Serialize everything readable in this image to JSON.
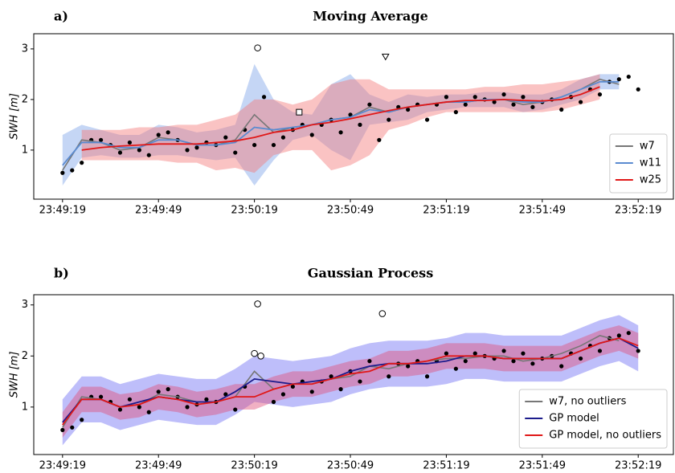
{
  "chart_data": [
    {
      "type": "line",
      "label": "a)",
      "title": "Moving Average",
      "ylabel": "SWH [m]",
      "xlim": [
        "23:49:10",
        "23:52:30"
      ],
      "xticks": [
        "23:49:19",
        "23:49:49",
        "23:50:19",
        "23:50:49",
        "23:51:19",
        "23:51:49",
        "23:52:19"
      ],
      "ylim": [
        0.03,
        3.3
      ],
      "yticks": [
        1,
        2,
        3
      ],
      "legend": "lower right",
      "points": {
        "color": "#000000",
        "x": [
          "23:49:19",
          "23:49:22",
          "23:49:25",
          "23:49:28",
          "23:49:31",
          "23:49:34",
          "23:49:37",
          "23:49:40",
          "23:49:43",
          "23:49:46",
          "23:49:49",
          "23:49:52",
          "23:49:55",
          "23:49:58",
          "23:50:01",
          "23:50:04",
          "23:50:07",
          "23:50:10",
          "23:50:13",
          "23:50:16",
          "23:50:19",
          "23:50:22",
          "23:50:25",
          "23:50:28",
          "23:50:31",
          "23:50:34",
          "23:50:37",
          "23:50:40",
          "23:50:43",
          "23:50:46",
          "23:50:49",
          "23:50:52",
          "23:50:55",
          "23:50:58",
          "23:51:01",
          "23:51:04",
          "23:51:07",
          "23:51:10",
          "23:51:13",
          "23:51:16",
          "23:51:19",
          "23:51:22",
          "23:51:25",
          "23:51:28",
          "23:51:31",
          "23:51:34",
          "23:51:37",
          "23:51:40",
          "23:51:43",
          "23:51:46",
          "23:51:49",
          "23:51:52",
          "23:51:55",
          "23:51:58",
          "23:52:01",
          "23:52:04",
          "23:52:07",
          "23:52:10",
          "23:52:13",
          "23:52:16",
          "23:52:19"
        ],
        "values": [
          0.55,
          0.6,
          0.75,
          1.2,
          1.2,
          1.1,
          0.95,
          1.15,
          1.0,
          0.9,
          1.3,
          1.35,
          1.2,
          1.0,
          1.05,
          1.15,
          1.1,
          1.25,
          0.95,
          1.4,
          1.1,
          2.05,
          1.1,
          1.25,
          1.4,
          1.5,
          1.3,
          1.5,
          1.6,
          1.35,
          1.7,
          1.5,
          1.9,
          1.2,
          1.6,
          1.85,
          1.8,
          1.9,
          1.6,
          1.9,
          2.05,
          1.75,
          1.9,
          2.05,
          2.0,
          1.95,
          2.1,
          1.9,
          2.05,
          1.85,
          1.95,
          2.0,
          1.8,
          2.05,
          1.95,
          2.2,
          2.1,
          2.35,
          2.4,
          2.45,
          2.2
        ]
      },
      "outliers": [
        {
          "marker": "circle",
          "x": "23:50:20",
          "value": 3.02
        },
        {
          "marker": "square",
          "x": "23:50:33",
          "value": 1.75
        },
        {
          "marker": "triangle",
          "x": "23:51:00",
          "value": 2.85
        }
      ],
      "x": [
        "23:49:19",
        "23:49:25",
        "23:49:31",
        "23:49:37",
        "23:49:43",
        "23:49:49",
        "23:49:55",
        "23:50:01",
        "23:50:07",
        "23:50:13",
        "23:50:19",
        "23:50:25",
        "23:50:31",
        "23:50:37",
        "23:50:43",
        "23:50:49",
        "23:50:55",
        "23:51:01",
        "23:51:07",
        "23:51:13",
        "23:51:19",
        "23:51:25",
        "23:51:31",
        "23:51:37",
        "23:51:43",
        "23:51:49",
        "23:51:55",
        "23:52:01",
        "23:52:07",
        "23:52:13",
        "23:52:19"
      ],
      "series": [
        {
          "name": "w7",
          "color": "#777777",
          "values": [
            0.6,
            1.2,
            1.15,
            1.0,
            1.05,
            1.25,
            1.2,
            1.1,
            1.1,
            1.2,
            1.7,
            1.35,
            1.45,
            1.5,
            1.6,
            1.65,
            1.85,
            1.75,
            1.85,
            1.9,
            1.95,
            1.95,
            2.0,
            2.0,
            1.9,
            1.95,
            2.05,
            2.2,
            2.4,
            2.3,
            null
          ]
        },
        {
          "name": "w11",
          "color": "#5b8bd0",
          "band_color": "#7fa3e8",
          "values": [
            0.7,
            1.15,
            1.15,
            1.05,
            1.05,
            1.2,
            1.2,
            1.1,
            1.1,
            1.15,
            1.45,
            1.4,
            1.45,
            1.5,
            1.6,
            1.65,
            1.8,
            1.75,
            1.85,
            1.9,
            1.95,
            1.95,
            2.0,
            2.0,
            1.95,
            1.95,
            2.05,
            2.2,
            2.35,
            2.35,
            null
          ],
          "lower": [
            0.3,
            0.85,
            0.9,
            0.85,
            0.85,
            0.9,
            0.9,
            0.85,
            0.8,
            0.85,
            0.3,
            0.8,
            1.2,
            1.3,
            1.0,
            0.8,
            1.5,
            1.55,
            1.6,
            1.75,
            1.8,
            1.85,
            1.85,
            1.85,
            1.75,
            1.8,
            1.9,
            2.0,
            2.2,
            2.2,
            null
          ],
          "upper": [
            1.3,
            1.5,
            1.4,
            1.3,
            1.3,
            1.5,
            1.45,
            1.35,
            1.4,
            1.5,
            2.7,
            2.0,
            1.75,
            1.7,
            2.3,
            2.5,
            2.1,
            1.95,
            2.1,
            2.05,
            2.1,
            2.1,
            2.15,
            2.15,
            2.1,
            2.1,
            2.2,
            2.4,
            2.5,
            2.5,
            null
          ]
        },
        {
          "name": "w25",
          "color": "#e01818",
          "band_color": "#f57a7a",
          "values": [
            null,
            1.0,
            1.05,
            1.08,
            1.1,
            1.12,
            1.12,
            1.12,
            1.15,
            1.18,
            1.25,
            1.35,
            1.4,
            1.5,
            1.55,
            1.62,
            1.7,
            1.78,
            1.85,
            1.9,
            1.95,
            1.98,
            1.98,
            2.0,
            1.98,
            1.97,
            2.0,
            2.1,
            2.25,
            null,
            null
          ],
          "lower": [
            null,
            0.8,
            0.8,
            0.8,
            0.8,
            0.8,
            0.75,
            0.75,
            0.6,
            0.65,
            0.55,
            0.9,
            1.0,
            1.0,
            0.6,
            0.7,
            0.9,
            1.4,
            1.5,
            1.65,
            1.75,
            1.75,
            1.75,
            1.75,
            1.75,
            1.75,
            1.8,
            1.9,
            2.0,
            null,
            null
          ],
          "upper": [
            null,
            1.4,
            1.4,
            1.4,
            1.45,
            1.45,
            1.5,
            1.5,
            1.6,
            1.7,
            2.0,
            2.0,
            1.9,
            2.0,
            2.3,
            2.4,
            2.4,
            2.2,
            2.2,
            2.2,
            2.2,
            2.2,
            2.25,
            2.25,
            2.3,
            2.3,
            2.35,
            2.4,
            2.5,
            null,
            null
          ]
        }
      ]
    },
    {
      "type": "line",
      "label": "b)",
      "title": "Gaussian Process",
      "ylabel": "SWH [m]",
      "xlim": [
        "23:49:10",
        "23:52:30"
      ],
      "xticks": [
        "23:49:19",
        "23:49:49",
        "23:50:19",
        "23:50:49",
        "23:51:19",
        "23:51:49",
        "23:52:19"
      ],
      "ylim": [
        0.07,
        3.2
      ],
      "yticks": [
        1,
        2,
        3
      ],
      "legend": "lower right",
      "points": {
        "color": "#000000",
        "x": [
          "23:49:19",
          "23:49:22",
          "23:49:25",
          "23:49:28",
          "23:49:31",
          "23:49:34",
          "23:49:37",
          "23:49:40",
          "23:49:43",
          "23:49:46",
          "23:49:49",
          "23:49:52",
          "23:49:55",
          "23:49:58",
          "23:50:01",
          "23:50:04",
          "23:50:07",
          "23:50:10",
          "23:50:13",
          "23:50:16",
          "23:50:25",
          "23:50:28",
          "23:50:31",
          "23:50:34",
          "23:50:37",
          "23:50:40",
          "23:50:43",
          "23:50:46",
          "23:50:49",
          "23:50:52",
          "23:50:55",
          "23:51:01",
          "23:51:04",
          "23:51:07",
          "23:51:10",
          "23:51:13",
          "23:51:16",
          "23:51:19",
          "23:51:22",
          "23:51:25",
          "23:51:28",
          "23:51:31",
          "23:51:34",
          "23:51:37",
          "23:51:40",
          "23:51:43",
          "23:51:46",
          "23:51:49",
          "23:51:52",
          "23:51:55",
          "23:51:58",
          "23:52:01",
          "23:52:04",
          "23:52:07",
          "23:52:10",
          "23:52:13",
          "23:52:16",
          "23:52:19"
        ],
        "values": [
          0.55,
          0.6,
          0.75,
          1.2,
          1.2,
          1.1,
          0.95,
          1.15,
          1.0,
          0.9,
          1.3,
          1.35,
          1.2,
          1.0,
          1.05,
          1.15,
          1.1,
          1.25,
          0.95,
          1.4,
          1.1,
          1.25,
          1.4,
          1.5,
          1.3,
          1.5,
          1.6,
          1.35,
          1.7,
          1.5,
          1.9,
          1.6,
          1.85,
          1.8,
          1.9,
          1.6,
          1.9,
          2.05,
          1.75,
          1.9,
          2.05,
          2.0,
          1.95,
          2.1,
          1.9,
          2.05,
          1.85,
          1.95,
          2.0,
          1.8,
          2.05,
          1.95,
          2.2,
          2.1,
          2.35,
          2.4,
          2.45,
          2.1
        ]
      },
      "outliers": [
        {
          "marker": "circle",
          "x": "23:50:19",
          "value": 2.05
        },
        {
          "marker": "circle",
          "x": "23:50:21",
          "value": 2.0
        },
        {
          "marker": "circle",
          "x": "23:50:20",
          "value": 3.02
        },
        {
          "marker": "circle",
          "x": "23:50:59",
          "value": 2.83
        }
      ],
      "x": [
        "23:49:19",
        "23:49:25",
        "23:49:31",
        "23:49:37",
        "23:49:43",
        "23:49:49",
        "23:49:55",
        "23:50:01",
        "23:50:07",
        "23:50:13",
        "23:50:19",
        "23:50:25",
        "23:50:31",
        "23:50:37",
        "23:50:43",
        "23:50:49",
        "23:50:55",
        "23:51:01",
        "23:51:07",
        "23:51:13",
        "23:51:19",
        "23:51:25",
        "23:51:31",
        "23:51:37",
        "23:51:43",
        "23:51:49",
        "23:51:55",
        "23:52:01",
        "23:52:07",
        "23:52:13",
        "23:52:19"
      ],
      "series": [
        {
          "name": "w7, no outliers",
          "color": "#777777",
          "values": [
            0.6,
            1.2,
            1.15,
            1.0,
            1.05,
            1.25,
            1.2,
            1.1,
            1.1,
            1.2,
            1.7,
            1.35,
            1.45,
            1.45,
            1.55,
            1.6,
            1.8,
            1.75,
            1.85,
            1.9,
            1.95,
            1.95,
            2.0,
            2.0,
            1.9,
            1.95,
            2.05,
            2.2,
            2.4,
            2.3,
            null
          ]
        },
        {
          "name": "GP model",
          "color": "#1c1c8c",
          "band_color": "#6f6ff5",
          "values": [
            0.7,
            1.15,
            1.15,
            1.0,
            1.1,
            1.2,
            1.15,
            1.1,
            1.1,
            1.3,
            1.55,
            1.5,
            1.45,
            1.5,
            1.55,
            1.7,
            1.8,
            1.85,
            1.85,
            1.85,
            1.9,
            2.0,
            2.0,
            1.95,
            1.95,
            1.95,
            1.95,
            2.1,
            2.25,
            2.35,
            2.15
          ],
          "lower": [
            0.25,
            0.7,
            0.7,
            0.55,
            0.65,
            0.75,
            0.7,
            0.65,
            0.65,
            0.85,
            1.1,
            1.05,
            1.0,
            1.05,
            1.1,
            1.25,
            1.35,
            1.4,
            1.4,
            1.4,
            1.45,
            1.55,
            1.55,
            1.5,
            1.5,
            1.5,
            1.5,
            1.65,
            1.8,
            1.9,
            1.7
          ],
          "upper": [
            1.15,
            1.6,
            1.6,
            1.45,
            1.55,
            1.65,
            1.6,
            1.55,
            1.55,
            1.75,
            2.0,
            1.95,
            1.9,
            1.95,
            2.0,
            2.15,
            2.25,
            2.3,
            2.3,
            2.3,
            2.35,
            2.45,
            2.45,
            2.4,
            2.4,
            2.4,
            2.4,
            2.55,
            2.7,
            2.8,
            2.6
          ]
        },
        {
          "name": "GP model, no outliers",
          "color": "#e01818",
          "band_color": "#e0507a",
          "values": [
            0.65,
            1.15,
            1.15,
            1.0,
            1.05,
            1.2,
            1.15,
            1.05,
            1.1,
            1.2,
            1.2,
            1.35,
            1.45,
            1.45,
            1.55,
            1.65,
            1.7,
            1.85,
            1.85,
            1.9,
            2.0,
            2.0,
            2.0,
            1.95,
            1.95,
            1.95,
            1.95,
            2.1,
            2.25,
            2.35,
            2.2
          ],
          "lower": [
            0.4,
            0.9,
            0.9,
            0.75,
            0.8,
            0.95,
            0.9,
            0.8,
            0.85,
            0.95,
            0.95,
            1.1,
            1.2,
            1.2,
            1.3,
            1.4,
            1.45,
            1.6,
            1.6,
            1.65,
            1.75,
            1.75,
            1.75,
            1.7,
            1.7,
            1.7,
            1.7,
            1.85,
            2.0,
            2.1,
            1.95
          ],
          "upper": [
            0.9,
            1.4,
            1.4,
            1.25,
            1.3,
            1.45,
            1.4,
            1.3,
            1.35,
            1.45,
            1.45,
            1.6,
            1.7,
            1.7,
            1.8,
            1.9,
            1.95,
            2.1,
            2.1,
            2.15,
            2.25,
            2.25,
            2.25,
            2.2,
            2.2,
            2.2,
            2.2,
            2.35,
            2.5,
            2.6,
            2.45
          ]
        }
      ]
    }
  ]
}
